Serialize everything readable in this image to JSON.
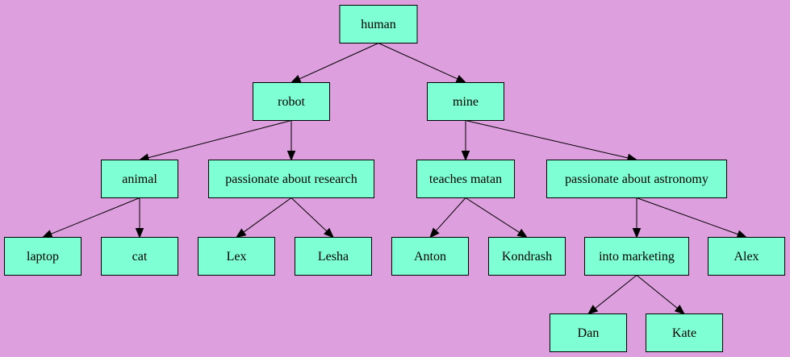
{
  "colors": {
    "background": "#dd9fdd",
    "node_fill": "#7fffd4",
    "node_stroke": "#000000",
    "edge": "#000000"
  },
  "diagram": {
    "type": "tree",
    "nodes": [
      {
        "id": "human",
        "label": "human"
      },
      {
        "id": "robot",
        "label": "robot"
      },
      {
        "id": "mine",
        "label": "mine"
      },
      {
        "id": "animal",
        "label": "animal"
      },
      {
        "id": "research",
        "label": "passionate about research"
      },
      {
        "id": "matan",
        "label": "teaches matan"
      },
      {
        "id": "astronomy",
        "label": "passionate about astronomy"
      },
      {
        "id": "laptop",
        "label": "laptop"
      },
      {
        "id": "cat",
        "label": "cat"
      },
      {
        "id": "lex",
        "label": "Lex"
      },
      {
        "id": "lesha",
        "label": "Lesha"
      },
      {
        "id": "anton",
        "label": "Anton"
      },
      {
        "id": "kondrash",
        "label": "Kondrash"
      },
      {
        "id": "marketing",
        "label": "into marketing"
      },
      {
        "id": "alex",
        "label": "Alex"
      },
      {
        "id": "dan",
        "label": "Dan"
      },
      {
        "id": "kate",
        "label": "Kate"
      }
    ],
    "edges": [
      {
        "from": "human",
        "to": "robot"
      },
      {
        "from": "human",
        "to": "mine"
      },
      {
        "from": "robot",
        "to": "animal"
      },
      {
        "from": "robot",
        "to": "research"
      },
      {
        "from": "mine",
        "to": "matan"
      },
      {
        "from": "mine",
        "to": "astronomy"
      },
      {
        "from": "animal",
        "to": "laptop"
      },
      {
        "from": "animal",
        "to": "cat"
      },
      {
        "from": "research",
        "to": "lex"
      },
      {
        "from": "research",
        "to": "lesha"
      },
      {
        "from": "matan",
        "to": "anton"
      },
      {
        "from": "matan",
        "to": "kondrash"
      },
      {
        "from": "astronomy",
        "to": "marketing"
      },
      {
        "from": "astronomy",
        "to": "alex"
      },
      {
        "from": "marketing",
        "to": "dan"
      },
      {
        "from": "marketing",
        "to": "kate"
      }
    ]
  }
}
